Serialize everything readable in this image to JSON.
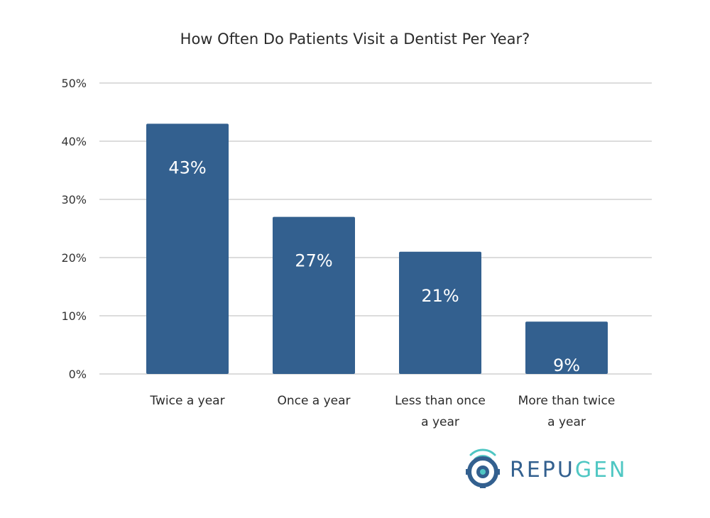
{
  "chart_data": {
    "type": "bar",
    "title": "How Often Do Patients Visit a Dentist Per Year?",
    "categories": [
      [
        "Twice a year"
      ],
      [
        "Once a year"
      ],
      [
        "Less than once",
        "a year"
      ],
      [
        "More than twice",
        "a year"
      ]
    ],
    "values": [
      43,
      27,
      21,
      9
    ],
    "data_labels": [
      "43%",
      "27%",
      "21%",
      "9%"
    ],
    "yticks": [
      0,
      10,
      20,
      30,
      40,
      50
    ],
    "ytick_labels": [
      "0%",
      "10%",
      "20%",
      "30%",
      "40%",
      "50%"
    ],
    "ylim": [
      0,
      50
    ],
    "xlabel": "",
    "ylabel": "",
    "grid": true,
    "bar_color": "#33608f"
  },
  "brand": {
    "name_dark": "REPU",
    "name_light": "GEN",
    "color_dark": "#33608f",
    "color_light": "#4fc7c3"
  }
}
